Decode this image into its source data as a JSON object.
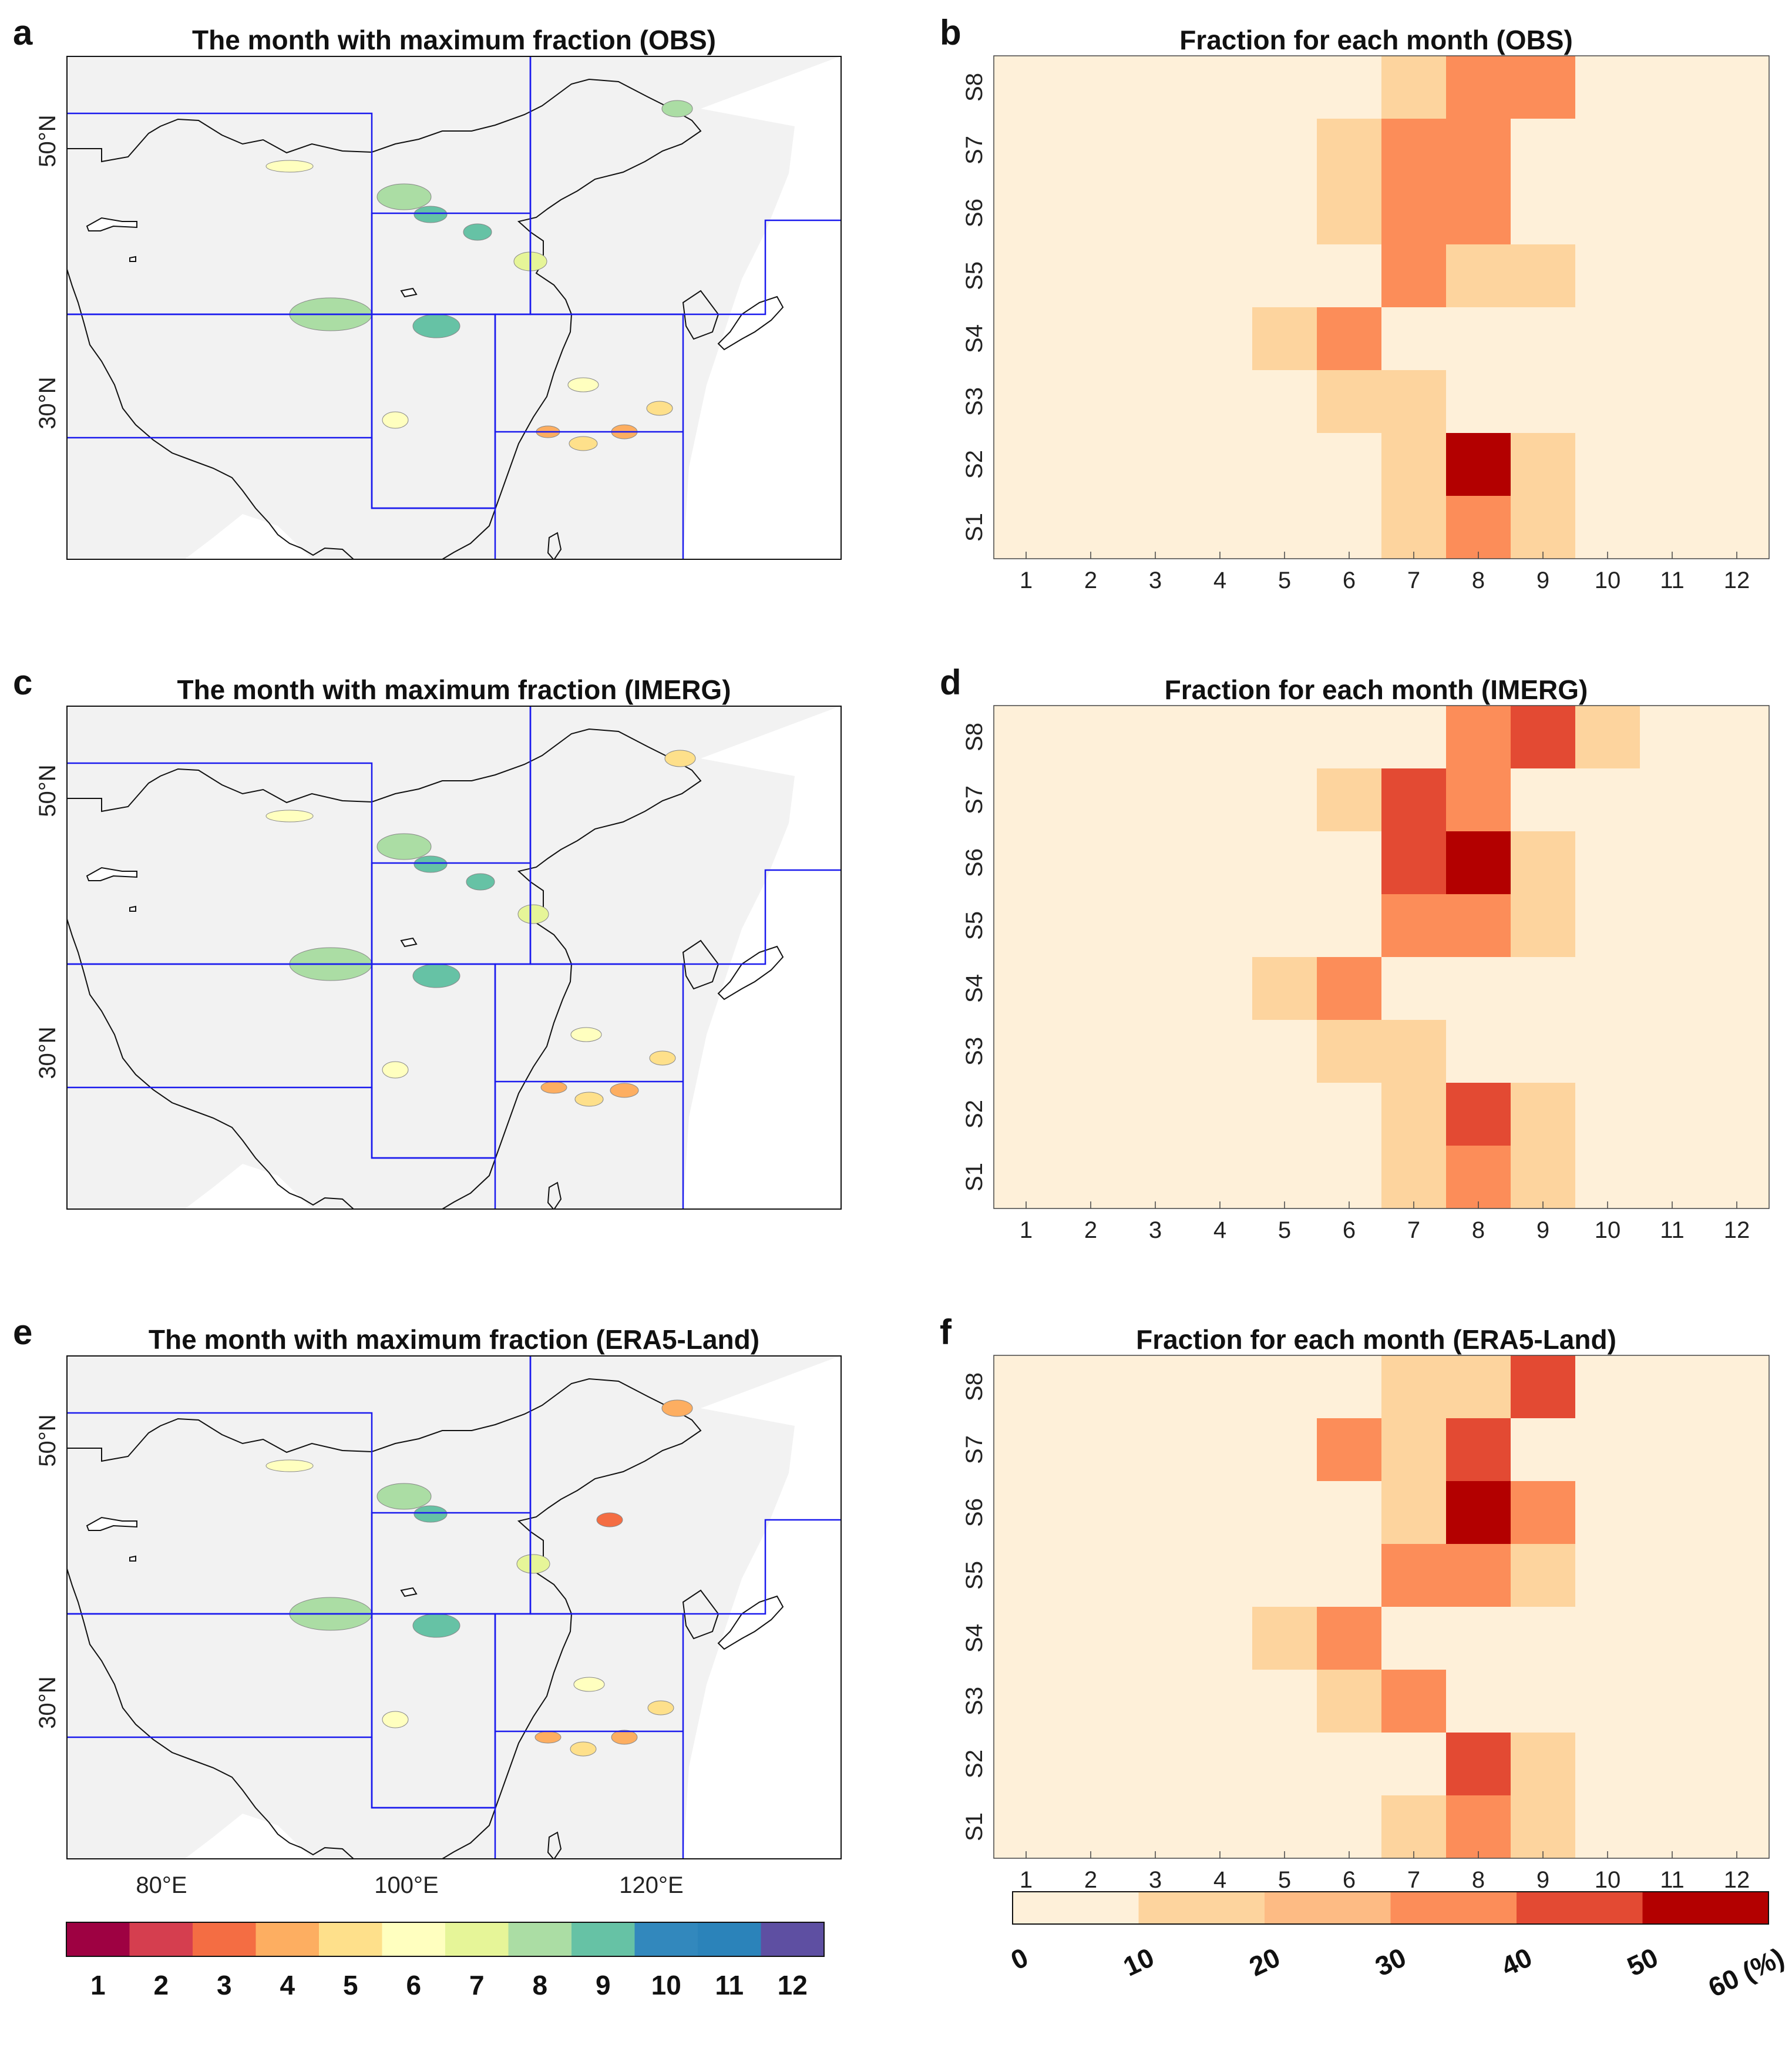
{
  "map_panels": [
    {
      "label": "a",
      "title": "The month with maximum fraction (OBS)"
    },
    {
      "label": "c",
      "title": "The month with maximum fraction (IMERG)"
    },
    {
      "label": "e",
      "title": "The month with maximum fraction (ERA5-Land)"
    }
  ],
  "map_axes": {
    "lat_ticks": [
      "50°N",
      "30°N"
    ],
    "lon_ticks": [
      "80°E",
      "100°E",
      "120°E"
    ]
  },
  "month_colorbar": {
    "labels": [
      "1",
      "2",
      "3",
      "4",
      "5",
      "6",
      "7",
      "8",
      "9",
      "10",
      "11",
      "12"
    ],
    "colors": [
      "#9e0142",
      "#d53e4f",
      "#f46d43",
      "#fdae61",
      "#fee08b",
      "#ffffbf",
      "#e6f598",
      "#abdda4",
      "#66c2a5",
      "#3288bd",
      "#2b83ba",
      "#5e4fa2"
    ]
  },
  "chart_data": [
    {
      "type": "heatmap",
      "label": "b",
      "title": "Fraction for each month (OBS)",
      "x": [
        "1",
        "2",
        "3",
        "4",
        "5",
        "6",
        "7",
        "8",
        "9",
        "10",
        "11",
        "12"
      ],
      "y": [
        "S8",
        "S7",
        "S6",
        "S5",
        "S4",
        "S3",
        "S2",
        "S1"
      ],
      "values": [
        [
          0,
          0,
          0,
          0,
          0,
          0,
          15,
          30,
          30,
          5,
          0,
          0
        ],
        [
          0,
          0,
          0,
          0,
          0,
          15,
          30,
          30,
          0,
          0,
          0,
          0
        ],
        [
          0,
          0,
          0,
          0,
          0,
          15,
          30,
          30,
          5,
          0,
          0,
          0
        ],
        [
          0,
          0,
          0,
          0,
          0,
          5,
          30,
          15,
          15,
          0,
          0,
          0
        ],
        [
          0,
          0,
          0,
          5,
          15,
          30,
          5,
          0,
          0,
          0,
          0,
          0
        ],
        [
          0,
          0,
          0,
          0,
          5,
          15,
          15,
          5,
          5,
          0,
          0,
          0
        ],
        [
          0,
          0,
          0,
          0,
          0,
          0,
          15,
          55,
          15,
          5,
          0,
          0
        ],
        [
          0,
          0,
          0,
          0,
          5,
          5,
          15,
          30,
          15,
          0,
          0,
          0
        ]
      ]
    },
    {
      "type": "heatmap",
      "label": "d",
      "title": "Fraction for each month (IMERG)",
      "x": [
        "1",
        "2",
        "3",
        "4",
        "5",
        "6",
        "7",
        "8",
        "9",
        "10",
        "11",
        "12"
      ],
      "y": [
        "S8",
        "S7",
        "S6",
        "S5",
        "S4",
        "S3",
        "S2",
        "S1"
      ],
      "values": [
        [
          0,
          0,
          0,
          0,
          0,
          0,
          5,
          30,
          45,
          15,
          0,
          0
        ],
        [
          0,
          0,
          0,
          0,
          0,
          15,
          45,
          30,
          0,
          0,
          0,
          0
        ],
        [
          0,
          0,
          0,
          0,
          0,
          0,
          45,
          55,
          15,
          0,
          0,
          0
        ],
        [
          0,
          0,
          0,
          0,
          0,
          5,
          30,
          30,
          15,
          5,
          0,
          0
        ],
        [
          0,
          0,
          0,
          5,
          15,
          30,
          5,
          5,
          0,
          0,
          0,
          0
        ],
        [
          0,
          0,
          0,
          0,
          5,
          15,
          15,
          5,
          5,
          0,
          0,
          0
        ],
        [
          0,
          0,
          0,
          0,
          0,
          0,
          15,
          45,
          15,
          5,
          0,
          0
        ],
        [
          0,
          0,
          0,
          0,
          5,
          5,
          15,
          30,
          15,
          0,
          0,
          0
        ]
      ]
    },
    {
      "type": "heatmap",
      "label": "f",
      "title": "Fraction for each month (ERA5-Land)",
      "x": [
        "1",
        "2",
        "3",
        "4",
        "5",
        "6",
        "7",
        "8",
        "9",
        "10",
        "11",
        "12"
      ],
      "y": [
        "S8",
        "S7",
        "S6",
        "S5",
        "S4",
        "S3",
        "S2",
        "S1"
      ],
      "values": [
        [
          0,
          0,
          0,
          0,
          0,
          0,
          15,
          15,
          45,
          5,
          0,
          0
        ],
        [
          0,
          0,
          0,
          0,
          0,
          30,
          15,
          45,
          5,
          0,
          0,
          0
        ],
        [
          0,
          0,
          0,
          0,
          0,
          0,
          15,
          55,
          30,
          0,
          0,
          0
        ],
        [
          0,
          0,
          0,
          0,
          0,
          5,
          30,
          30,
          15,
          0,
          0,
          0
        ],
        [
          0,
          0,
          0,
          5,
          15,
          30,
          5,
          5,
          0,
          0,
          0,
          0
        ],
        [
          0,
          0,
          0,
          0,
          5,
          15,
          30,
          5,
          5,
          0,
          0,
          0
        ],
        [
          0,
          0,
          0,
          0,
          0,
          0,
          5,
          45,
          15,
          5,
          0,
          0
        ],
        [
          0,
          0,
          0,
          0,
          5,
          5,
          15,
          30,
          15,
          0,
          0,
          0
        ]
      ]
    }
  ],
  "fraction_colorbar": {
    "labels": [
      "0",
      "10",
      "20",
      "30",
      "40",
      "50",
      "60 (%)"
    ],
    "bounds": [
      0,
      10,
      20,
      30,
      40,
      50,
      60
    ],
    "colors": [
      "#fef0d9",
      "#fdd49e",
      "#fdbb84",
      "#fc8d59",
      "#e34a33",
      "#b30000"
    ]
  }
}
